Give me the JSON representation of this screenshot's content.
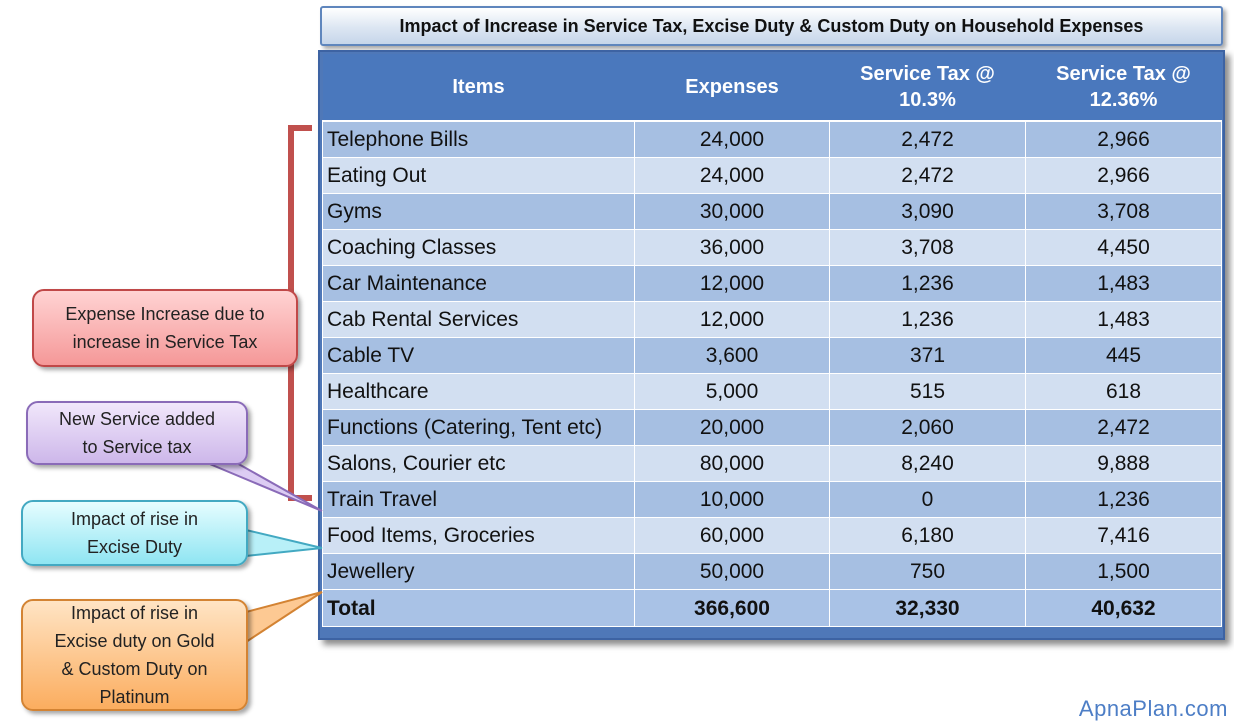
{
  "title": "Impact of Increase in Service Tax, Excise Duty & Custom Duty on Household Expenses",
  "headers": {
    "items": "Items",
    "expenses": "Expenses",
    "tax1_line1": "Service Tax @",
    "tax1_line2": "10.3%",
    "tax2_line1": "Service Tax @",
    "tax2_line2": "12.36%"
  },
  "rows": [
    {
      "item": "Telephone Bills",
      "expenses": "24,000",
      "tax_10_3": "2,472",
      "tax_12_36": "2,966"
    },
    {
      "item": "Eating Out",
      "expenses": "24,000",
      "tax_10_3": "2,472",
      "tax_12_36": "2,966"
    },
    {
      "item": "Gyms",
      "expenses": "30,000",
      "tax_10_3": "3,090",
      "tax_12_36": "3,708"
    },
    {
      "item": "Coaching Classes",
      "expenses": "36,000",
      "tax_10_3": "3,708",
      "tax_12_36": "4,450"
    },
    {
      "item": "Car Maintenance",
      "expenses": "12,000",
      "tax_10_3": "1,236",
      "tax_12_36": "1,483"
    },
    {
      "item": "Cab Rental Services",
      "expenses": "12,000",
      "tax_10_3": "1,236",
      "tax_12_36": "1,483"
    },
    {
      "item": "Cable TV",
      "expenses": "3,600",
      "tax_10_3": "371",
      "tax_12_36": "445"
    },
    {
      "item": "Healthcare",
      "expenses": "5,000",
      "tax_10_3": "515",
      "tax_12_36": "618"
    },
    {
      "item": "Functions (Catering, Tent etc)",
      "expenses": "20,000",
      "tax_10_3": "2,060",
      "tax_12_36": "2,472"
    },
    {
      "item": "Salons, Courier etc",
      "expenses": "80,000",
      "tax_10_3": "8,240",
      "tax_12_36": "9,888"
    },
    {
      "item": "Train Travel",
      "expenses": "10,000",
      "tax_10_3": "0",
      "tax_12_36": "1,236"
    },
    {
      "item": "Food Items,  Groceries",
      "expenses": "60,000",
      "tax_10_3": "6,180",
      "tax_12_36": "7,416"
    },
    {
      "item": "Jewellery",
      "expenses": "50,000",
      "tax_10_3": "750",
      "tax_12_36": "1,500"
    }
  ],
  "total": {
    "label": "Total",
    "expenses": "366,600",
    "tax_10_3": "32,330",
    "tax_12_36": "40,632"
  },
  "callouts": {
    "service_tax_increase": [
      "Expense Increase due to",
      "increase in Service Tax"
    ],
    "new_service": [
      "New Service added",
      "to Service tax"
    ],
    "excise_duty": [
      "Impact of rise in",
      "Excise Duty"
    ],
    "gold_platinum": [
      "Impact of rise in",
      "Excise duty on Gold",
      "& Custom Duty on",
      "Platinum"
    ]
  },
  "watermark": "ApnaPlan.com",
  "colors": {
    "header_blue": "#4a78bd",
    "row_dark": "#a6bfe2",
    "row_light": "#d2dff1",
    "bracket_red": "#c0504d",
    "watermark_blue": "#4d7ec6"
  }
}
